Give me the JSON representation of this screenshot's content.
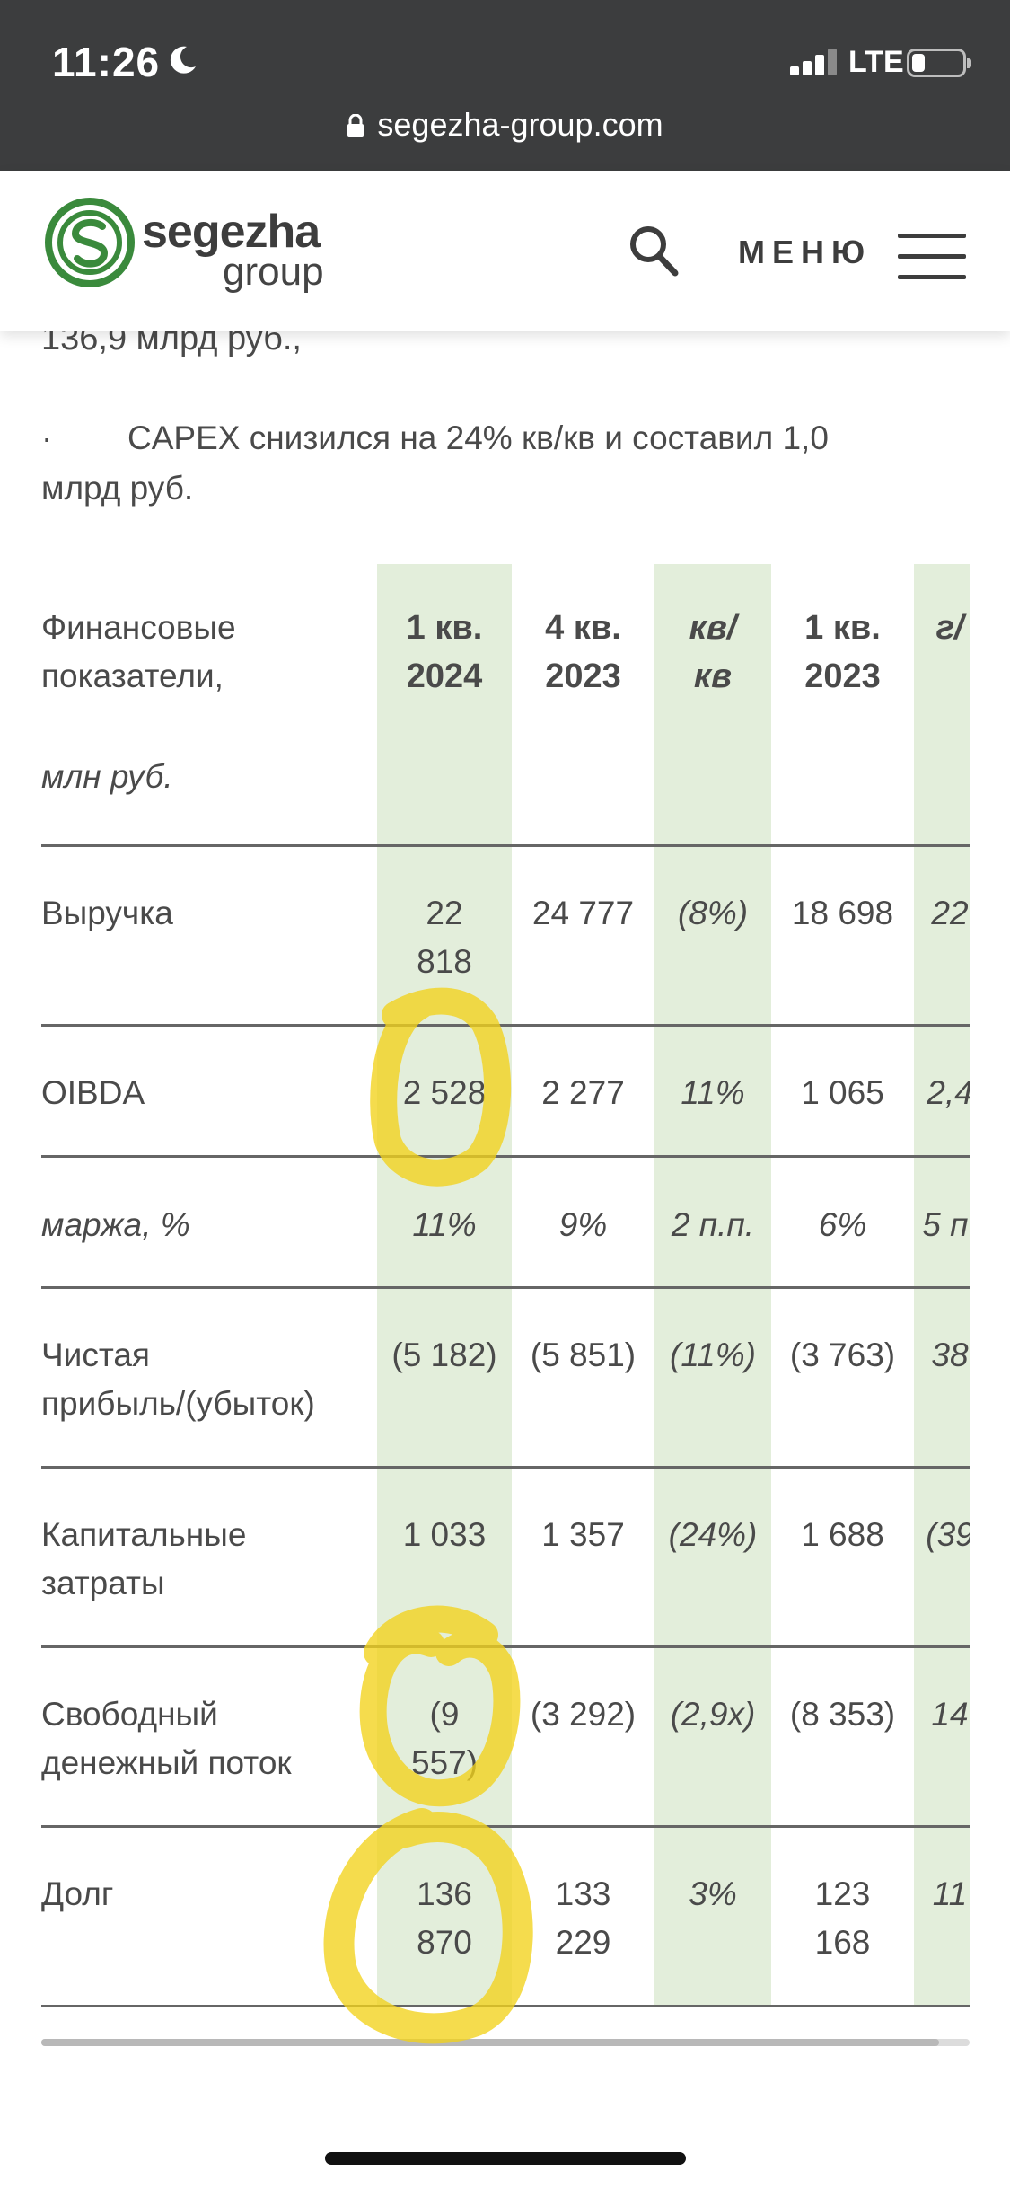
{
  "status_bar": {
    "time": "11:26",
    "network": "LTE",
    "battery_level": 0.25
  },
  "browser": {
    "url": "segezha-group.com"
  },
  "header": {
    "logo_word1": "segezha",
    "logo_word2": "group",
    "menu_label": "МЕНЮ",
    "brand_color": "#3a8a3c"
  },
  "article": {
    "cut_line": "136,9 млрд руб.,",
    "bullet": "·",
    "bullet_text": "CAPEX снизился на 24% кв/кв и составил 1,0 млрд руб."
  },
  "table": {
    "header": {
      "label_line1": "Финансовые",
      "label_line2": "показатели,",
      "unit": "млн руб.",
      "columns": [
        {
          "line1": "1 кв.",
          "line2": "2024"
        },
        {
          "line1": "4 кв.",
          "line2": "2023"
        },
        {
          "line1": "кв/",
          "line2": "кв"
        },
        {
          "line1": "1 кв.",
          "line2": "2023"
        },
        {
          "line1": "г/",
          "line2": ""
        }
      ]
    },
    "rows": [
      {
        "l1": "Выручка",
        "l2": "",
        "cells": [
          [
            "22",
            "818"
          ],
          [
            "24 777",
            ""
          ],
          [
            "(8%)",
            ""
          ],
          [
            "18 698",
            ""
          ],
          [
            "22",
            ""
          ]
        ]
      },
      {
        "l1": "OIBDA",
        "l2": "",
        "cells": [
          [
            "2 528",
            ""
          ],
          [
            "2 277",
            ""
          ],
          [
            "11%",
            ""
          ],
          [
            "1 065",
            ""
          ],
          [
            "2,4",
            ""
          ]
        ]
      },
      {
        "l1": "маржа, %",
        "l2": "",
        "cells": [
          [
            "11%",
            ""
          ],
          [
            "9%",
            ""
          ],
          [
            "2 п.п.",
            ""
          ],
          [
            "6%",
            ""
          ],
          [
            "5 п.",
            ""
          ]
        ]
      },
      {
        "l1": "Чистая",
        "l2": "прибыль/(убыток)",
        "cells": [
          [
            "(5 182)",
            ""
          ],
          [
            "(5 851)",
            ""
          ],
          [
            "(11%)",
            ""
          ],
          [
            "(3 763)",
            ""
          ],
          [
            "38",
            ""
          ]
        ]
      },
      {
        "l1": "Капитальные",
        "l2": "затраты",
        "cells": [
          [
            "1 033",
            ""
          ],
          [
            "1 357",
            ""
          ],
          [
            "(24%)",
            ""
          ],
          [
            "1 688",
            ""
          ],
          [
            "(39",
            ""
          ]
        ]
      },
      {
        "l1": "Свободный",
        "l2": "денежный поток",
        "cells": [
          [
            "(9",
            "557)"
          ],
          [
            "(3 292)",
            ""
          ],
          [
            "(2,9x)",
            ""
          ],
          [
            "(8 353)",
            ""
          ],
          [
            "14",
            ""
          ]
        ]
      },
      {
        "l1": "Долг",
        "l2": "",
        "cells": [
          [
            "136",
            "870"
          ],
          [
            "133",
            "229"
          ],
          [
            "3%",
            ""
          ],
          [
            "123",
            "168"
          ],
          [
            "11",
            ""
          ]
        ]
      }
    ],
    "highlight_color": "#e3eedb",
    "marker_color": "#f2d21b"
  }
}
